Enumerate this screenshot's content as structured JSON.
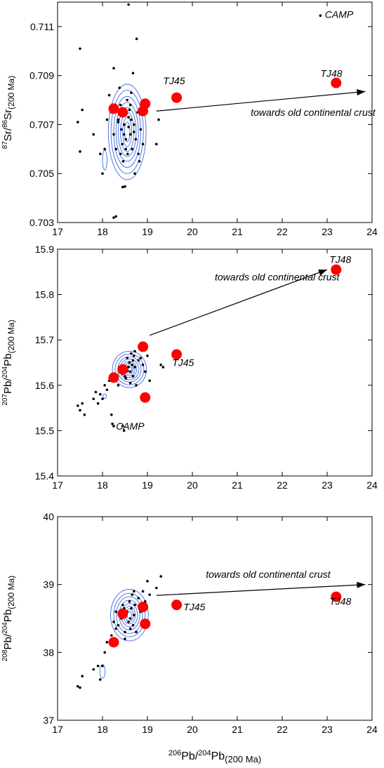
{
  "chart_data": [
    {
      "type": "scatter",
      "panel": "Sr",
      "ylabel": {
        "sup": "87",
        "a": "Sr/",
        "sup2": "86",
        "b": "Sr",
        "sub": "(200 Ma)"
      },
      "xlim": [
        17,
        24
      ],
      "ylim": [
        0.703,
        0.712
      ],
      "xticks": [
        "17",
        "18",
        "19",
        "20",
        "21",
        "22",
        "23",
        "24"
      ],
      "yticks": [
        "0.703",
        "0.705",
        "0.707",
        "0.709",
        "0.711"
      ],
      "ytick_values": [
        0.703,
        0.705,
        0.707,
        0.709,
        0.711
      ],
      "grid": false,
      "annotations": {
        "TJ45": "TJ45",
        "TJ48": "TJ48",
        "crust": "towards old continental crust",
        "camp": "CAMP"
      },
      "samples": [
        [
          18.25,
          0.70765
        ],
        [
          18.45,
          0.7075
        ],
        [
          18.9,
          0.70755
        ],
        [
          18.95,
          0.70785
        ],
        [
          19.65,
          0.7081
        ],
        [
          23.2,
          0.7087
        ]
      ],
      "camp_points": [
        [
          17.45,
          0.7071
        ],
        [
          17.5,
          0.7101
        ],
        [
          17.55,
          0.7076
        ],
        [
          17.5,
          0.7059
        ],
        [
          17.8,
          0.7066
        ],
        [
          17.95,
          0.7058
        ],
        [
          18.0,
          0.705
        ],
        [
          18.05,
          0.706
        ],
        [
          18.1,
          0.7072
        ],
        [
          18.15,
          0.7082
        ],
        [
          18.2,
          0.7075
        ],
        [
          18.25,
          0.7093
        ],
        [
          18.25,
          0.7066
        ],
        [
          18.3,
          0.706
        ],
        [
          18.35,
          0.7072
        ],
        [
          18.38,
          0.7085
        ],
        [
          18.4,
          0.7078
        ],
        [
          18.42,
          0.7068
        ],
        [
          18.44,
          0.7062
        ],
        [
          18.46,
          0.7055
        ],
        [
          18.48,
          0.707
        ],
        [
          18.5,
          0.7074
        ],
        [
          18.52,
          0.7064
        ],
        [
          18.55,
          0.708
        ],
        [
          18.56,
          0.7058
        ],
        [
          18.58,
          0.7069
        ],
        [
          18.6,
          0.7076
        ],
        [
          18.62,
          0.7066
        ],
        [
          18.64,
          0.7072
        ],
        [
          18.66,
          0.706
        ],
        [
          18.68,
          0.7091
        ],
        [
          18.7,
          0.707
        ],
        [
          18.72,
          0.705
        ],
        [
          18.74,
          0.7064
        ],
        [
          18.76,
          0.7105
        ],
        [
          18.78,
          0.7075
        ],
        [
          18.8,
          0.7058
        ],
        [
          18.85,
          0.7068
        ],
        [
          18.9,
          0.7062
        ],
        [
          18.95,
          0.708
        ],
        [
          18.58,
          0.7119
        ],
        [
          19.2,
          0.7062
        ],
        [
          19.25,
          0.7072
        ],
        [
          18.45,
          0.70445
        ],
        [
          18.5,
          0.70447
        ],
        [
          18.25,
          0.7032
        ],
        [
          18.3,
          0.70325
        ],
        [
          22.85,
          0.71145
        ],
        [
          18.35,
          0.7071
        ],
        [
          18.62,
          0.7078
        ],
        [
          18.52,
          0.706
        ],
        [
          18.42,
          0.7074
        ],
        [
          18.7,
          0.7067
        ],
        [
          18.58,
          0.7073
        ],
        [
          18.48,
          0.7066
        ],
        [
          18.64,
          0.7083
        ],
        [
          18.4,
          0.7058
        ],
        [
          18.82,
          0.7055
        ]
      ],
      "arrow": {
        "from": [
          19.2,
          0.70755
        ],
        "to": [
          23.85,
          0.70835
        ]
      }
    },
    {
      "type": "scatter",
      "panel": "Pb207",
      "ylabel": {
        "sup": "207",
        "a": "Pb/",
        "sup2": "204",
        "b": "Pb",
        "sub": "(200 Ma)"
      },
      "xlim": [
        17,
        24
      ],
      "ylim": [
        15.4,
        15.9
      ],
      "xticks": [
        "17",
        "18",
        "19",
        "20",
        "21",
        "22",
        "23",
        "24"
      ],
      "yticks": [
        "15.4",
        "15.5",
        "15.6",
        "15.7",
        "15.8",
        "15.9"
      ],
      "ytick_values": [
        15.4,
        15.5,
        15.6,
        15.7,
        15.8,
        15.9
      ],
      "grid": false,
      "annotations": {
        "TJ45": "TJ45",
        "TJ48": "TJ48",
        "crust": "towards old continental crust",
        "camp": "CAMP"
      },
      "samples": [
        [
          18.25,
          15.617
        ],
        [
          18.45,
          15.635
        ],
        [
          18.9,
          15.685
        ],
        [
          18.95,
          15.573
        ],
        [
          19.65,
          15.668
        ],
        [
          23.2,
          15.855
        ]
      ],
      "camp_points": [
        [
          17.45,
          15.555
        ],
        [
          17.5,
          15.545
        ],
        [
          17.55,
          15.56
        ],
        [
          17.6,
          15.535
        ],
        [
          17.8,
          15.57
        ],
        [
          17.85,
          15.585
        ],
        [
          17.9,
          15.56
        ],
        [
          17.95,
          15.58
        ],
        [
          18.0,
          15.57
        ],
        [
          18.05,
          15.6
        ],
        [
          18.1,
          15.59
        ],
        [
          18.15,
          15.61
        ],
        [
          18.2,
          15.535
        ],
        [
          18.22,
          15.515
        ],
        [
          18.25,
          15.51
        ],
        [
          18.3,
          15.62
        ],
        [
          18.35,
          15.6
        ],
        [
          18.4,
          15.64
        ],
        [
          18.45,
          15.51
        ],
        [
          18.48,
          15.5
        ],
        [
          18.5,
          15.62
        ],
        [
          18.55,
          15.66
        ],
        [
          18.6,
          15.65
        ],
        [
          18.62,
          15.63
        ],
        [
          18.64,
          15.67
        ],
        [
          18.66,
          15.645
        ],
        [
          18.68,
          15.62
        ],
        [
          18.7,
          15.665
        ],
        [
          18.72,
          15.64
        ],
        [
          18.75,
          15.6
        ],
        [
          18.8,
          15.655
        ],
        [
          18.85,
          15.66
        ],
        [
          18.9,
          15.645
        ],
        [
          18.95,
          15.63
        ],
        [
          19.0,
          15.665
        ],
        [
          19.05,
          15.61
        ],
        [
          19.3,
          15.645
        ],
        [
          19.35,
          15.64
        ],
        [
          18.45,
          15.625
        ],
        [
          18.52,
          15.615
        ],
        [
          18.58,
          15.64
        ],
        [
          18.62,
          15.605
        ],
        [
          18.68,
          15.655
        ],
        [
          18.56,
          15.632
        ],
        [
          18.72,
          15.675
        ]
      ],
      "arrow": {
        "from": [
          19.05,
          15.71
        ],
        "to": [
          23.0,
          15.855
        ]
      }
    },
    {
      "type": "scatter",
      "panel": "Pb208",
      "ylabel": {
        "sup": "208",
        "a": "Pb/",
        "sup2": "204",
        "b": "Pb",
        "sub": "(200 Ma)"
      },
      "xlabel": {
        "sup": "206",
        "a": "Pb/",
        "sup2": "204",
        "b": "Pb",
        "sub": "(200 Ma)"
      },
      "xlim": [
        17,
        24
      ],
      "ylim": [
        37,
        40
      ],
      "xticks": [
        "17",
        "18",
        "19",
        "20",
        "21",
        "22",
        "23",
        "24"
      ],
      "yticks": [
        "37",
        "38",
        "39",
        "40"
      ],
      "ytick_values": [
        37,
        38,
        39,
        40
      ],
      "grid": false,
      "annotations": {
        "TJ45": "TJ45",
        "TJ48": "TJ48",
        "crust": "towards old continental crust"
      },
      "samples": [
        [
          18.25,
          38.15
        ],
        [
          18.45,
          38.57
        ],
        [
          18.9,
          38.67
        ],
        [
          18.95,
          38.42
        ],
        [
          19.65,
          38.7
        ],
        [
          23.2,
          38.82
        ]
      ],
      "camp_points": [
        [
          17.45,
          37.5
        ],
        [
          17.5,
          37.48
        ],
        [
          17.55,
          37.65
        ],
        [
          17.8,
          37.75
        ],
        [
          17.9,
          37.8
        ],
        [
          17.95,
          37.6
        ],
        [
          18.0,
          37.8
        ],
        [
          18.05,
          38.0
        ],
        [
          18.1,
          38.15
        ],
        [
          18.2,
          38.25
        ],
        [
          18.25,
          38.45
        ],
        [
          18.3,
          38.6
        ],
        [
          18.35,
          38.4
        ],
        [
          18.4,
          38.55
        ],
        [
          18.45,
          38.7
        ],
        [
          18.5,
          38.3
        ],
        [
          18.55,
          38.6
        ],
        [
          18.6,
          38.75
        ],
        [
          18.62,
          38.5
        ],
        [
          18.64,
          38.65
        ],
        [
          18.66,
          38.85
        ],
        [
          18.68,
          38.4
        ],
        [
          18.7,
          38.55
        ],
        [
          18.72,
          38.7
        ],
        [
          18.75,
          38.3
        ],
        [
          18.8,
          38.8
        ],
        [
          18.85,
          38.6
        ],
        [
          18.9,
          38.9
        ],
        [
          18.95,
          38.75
        ],
        [
          19.0,
          39.05
        ],
        [
          19.05,
          38.85
        ],
        [
          19.3,
          39.12
        ],
        [
          18.5,
          38.2
        ],
        [
          18.58,
          38.45
        ],
        [
          18.48,
          38.65
        ],
        [
          18.62,
          38.35
        ],
        [
          18.7,
          38.9
        ],
        [
          18.3,
          38.35
        ],
        [
          19.2,
          38.95
        ],
        [
          18.42,
          38.5
        ]
      ],
      "arrow": {
        "from": [
          19.2,
          38.84
        ],
        "to": [
          23.85,
          39.0
        ]
      }
    }
  ]
}
